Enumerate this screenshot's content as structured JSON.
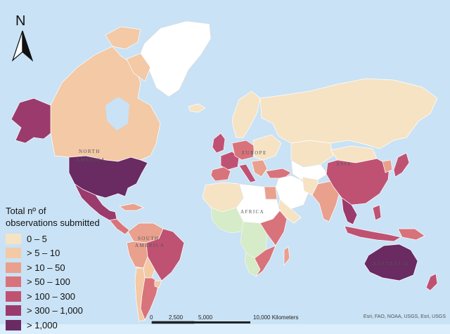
{
  "map": {
    "north_arrow_letter": "N",
    "continent_labels": {
      "north_america": "NORTH AMERICA",
      "south_america": "SOUTH AMERICA",
      "europe": "EUROPE",
      "asia": "ASIA",
      "africa": "AFRICA",
      "australia": "AUSTRALIA"
    },
    "colors": {
      "ocean": "#c9e2f5",
      "no_data": "#ffffff",
      "class_0": "#f6e3c4",
      "class_1": "#f3c9a6",
      "class_2": "#e9a08d",
      "class_3": "#d9737b",
      "class_4": "#bf5273",
      "class_5": "#9b3a6c",
      "class_6": "#6a2a62"
    }
  },
  "legend": {
    "title_line1": "Total nº of",
    "title_line2": "observations submitted",
    "classes": [
      {
        "label": "0 – 5",
        "color": "#f6e3c4"
      },
      {
        "label": "> 5 – 10",
        "color": "#f3c9a6"
      },
      {
        "label": "> 10 – 50",
        "color": "#e9a08d"
      },
      {
        "label": "> 50 – 100",
        "color": "#d9737b"
      },
      {
        "label": "> 100 – 300",
        "color": "#bf5273"
      },
      {
        "label": "> 300 – 1,000",
        "color": "#9b3a6c"
      },
      {
        "label": "> 1,000",
        "color": "#6a2a62"
      }
    ]
  },
  "scale_bar": {
    "ticks": [
      "0",
      "2,500",
      "5,000",
      "10,000 Kilometers"
    ]
  },
  "attribution": "Esri, FAO, NOAA, USGS, Esri, USGS"
}
